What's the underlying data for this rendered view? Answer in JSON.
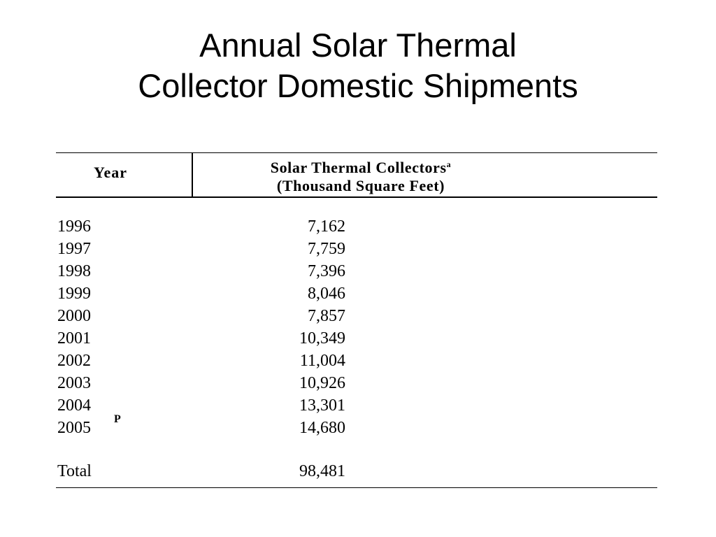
{
  "title": {
    "line1": "Annual Solar Thermal",
    "line2": "Collector Domestic Shipments"
  },
  "table": {
    "col_year": "Year",
    "col_value_line1": "Solar Thermal Collectors",
    "col_value_footnote": "a",
    "col_value_line2": "(Thousand Square Feet)",
    "rows": [
      {
        "year": "1996",
        "value": "7,162"
      },
      {
        "year": "1997",
        "value": "7,759"
      },
      {
        "year": "1998",
        "value": "7,396"
      },
      {
        "year": "1999",
        "value": "8,046"
      },
      {
        "year": "2000",
        "value": "7,857"
      },
      {
        "year": "2001",
        "value": "10,349"
      },
      {
        "year": "2002",
        "value": "11,004"
      },
      {
        "year": "2003",
        "value": "10,926"
      },
      {
        "year": "2004",
        "value": "13,301"
      },
      {
        "year": "2005",
        "value": "14,680",
        "marker": "P"
      }
    ],
    "total_label": "Total",
    "total_value": "98,481"
  }
}
